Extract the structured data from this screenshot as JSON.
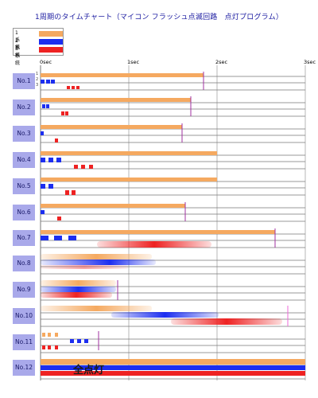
{
  "title": "1周期のタイムチャート（マイコン フラッシュ点滅回路　点灯プログラム）",
  "legend": [
    {
      "label": "1系統",
      "color": "#f5a960"
    },
    {
      "label": "2系統",
      "color": "#1c2ef0"
    },
    {
      "label": "3系統",
      "color": "#ee2222"
    }
  ],
  "axis": {
    "ticks": [
      "0sec",
      "1sec",
      "2sec",
      "3sec"
    ]
  },
  "series_labels": [
    "1",
    "2",
    "3"
  ],
  "rows": [
    {
      "label": "No.1"
    },
    {
      "label": "No.2"
    },
    {
      "label": "No.3"
    },
    {
      "label": "No.4"
    },
    {
      "label": "No.5"
    },
    {
      "label": "No.6"
    },
    {
      "label": "No.7"
    },
    {
      "label": "No.8"
    },
    {
      "label": "No.9"
    },
    {
      "label": "No.10"
    },
    {
      "label": "No.11"
    },
    {
      "label": "No.12"
    }
  ],
  "all_on_label": "全点灯",
  "colors": {
    "grid": "#777777",
    "row_label_bg": "#a9a9ea",
    "marker": "#a030a0"
  }
}
